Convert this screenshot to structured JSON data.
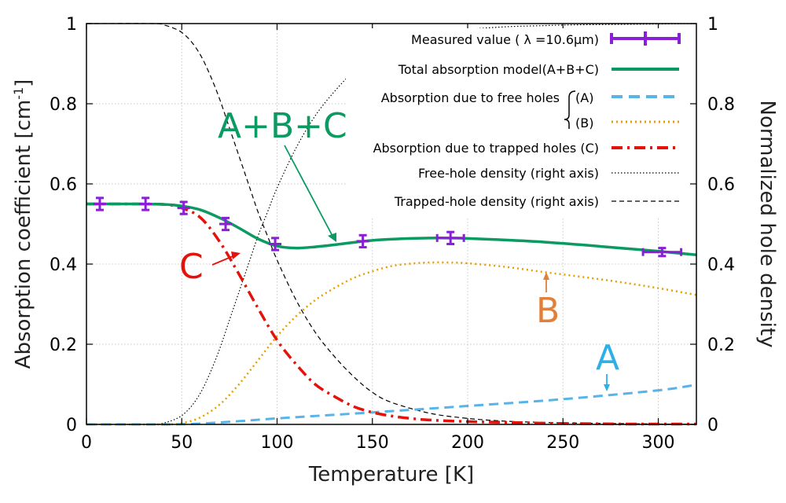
{
  "chart_data": {
    "type": "line",
    "xlabel": "Temperature [K]",
    "ylabel_left": "Absorption coefficient  [cm",
    "ylabel_left_exp": "-1",
    "ylabel_left_close": "]",
    "ylabel_right": "Normalized hole density",
    "xlim": [
      0,
      320
    ],
    "ylim_left": [
      0,
      1
    ],
    "ylim_right": [
      0,
      1
    ],
    "x_ticks": [
      "0",
      "50",
      "100",
      "150",
      "200",
      "250",
      "300"
    ],
    "y_ticks_left": [
      "0",
      "0.2",
      "0.4",
      "0.6",
      "0.8",
      "1"
    ],
    "y_ticks_right": [
      "0",
      "0.2",
      "0.4",
      "0.6",
      "0.8",
      "1"
    ],
    "grid": true,
    "colors": {
      "measured": "#8a1fd6",
      "total": "#0a9a62",
      "free": "#56b4e9",
      "B": "#e69f00",
      "trapped": "#e3120b",
      "density": "#000000"
    },
    "legend": {
      "measured": "Measured value ( λ =10.6μm)",
      "total": "Total absorption model(A+B+C)",
      "free": "Absorption due to free holes",
      "free_A": "(A)",
      "free_B": "(B)",
      "trapped": "Absorption due to trapped holes (C)",
      "free_density": "Free-hole density (right axis)",
      "trapped_density": "Trapped-hole density (right axis)"
    },
    "annotations": {
      "ABC": "A+B+C",
      "C": "C",
      "B": "B",
      "A": "A"
    },
    "series": [
      {
        "name": "Measured value ( λ =10.6μm)",
        "type": "errorbar",
        "x": [
          7,
          31,
          51,
          73,
          99,
          145,
          191,
          302
        ],
        "y": [
          0.55,
          0.55,
          0.54,
          0.5,
          0.45,
          0.457,
          0.465,
          0.43
        ],
        "yerr": [
          0.015,
          0.015,
          0.015,
          0.015,
          0.015,
          0.015,
          0.015,
          0.01
        ],
        "xerr": [
          0,
          0,
          0,
          0,
          0,
          0,
          7,
          10
        ]
      },
      {
        "name": "Total absorption model(A+B+C)",
        "x": [
          0,
          20,
          40,
          50,
          60,
          70,
          80,
          90,
          100,
          110,
          120,
          130,
          140,
          150,
          160,
          170,
          180,
          190,
          200,
          220,
          240,
          260,
          280,
          300,
          320
        ],
        "y": [
          0.55,
          0.55,
          0.549,
          0.545,
          0.535,
          0.515,
          0.49,
          0.463,
          0.445,
          0.44,
          0.443,
          0.448,
          0.454,
          0.459,
          0.462,
          0.464,
          0.465,
          0.465,
          0.464,
          0.46,
          0.455,
          0.448,
          0.44,
          0.432,
          0.423
        ]
      },
      {
        "name": "(A)",
        "x": [
          0,
          40,
          50,
          60,
          80,
          100,
          150,
          200,
          250,
          300,
          320
        ],
        "y": [
          0,
          0,
          0.0005,
          0.002,
          0.008,
          0.015,
          0.03,
          0.046,
          0.063,
          0.085,
          0.099
        ]
      },
      {
        "name": "(B)",
        "x": [
          0,
          40,
          50,
          60,
          70,
          80,
          90,
          100,
          110,
          120,
          130,
          140,
          150,
          160,
          170,
          180,
          190,
          200,
          220,
          240,
          260,
          280,
          300,
          320
        ],
        "y": [
          0,
          0,
          0.003,
          0.018,
          0.05,
          0.1,
          0.16,
          0.22,
          0.27,
          0.31,
          0.34,
          0.365,
          0.382,
          0.395,
          0.401,
          0.404,
          0.404,
          0.402,
          0.393,
          0.38,
          0.368,
          0.355,
          0.34,
          0.323
        ]
      },
      {
        "name": "Absorption due to trapped holes (C)",
        "x": [
          0,
          20,
          40,
          50,
          60,
          70,
          80,
          90,
          100,
          110,
          120,
          130,
          140,
          150,
          160,
          170,
          180,
          200,
          220,
          240,
          260,
          280,
          300,
          320
        ],
        "y": [
          0.55,
          0.55,
          0.549,
          0.54,
          0.515,
          0.455,
          0.375,
          0.29,
          0.21,
          0.15,
          0.1,
          0.07,
          0.045,
          0.03,
          0.021,
          0.015,
          0.011,
          0.007,
          0.005,
          0.003,
          0.002,
          0.001,
          0.001,
          0.001
        ]
      },
      {
        "name": "Free-hole density (right axis)",
        "x": [
          0,
          35,
          40,
          45,
          50,
          55,
          60,
          65,
          70,
          75,
          80,
          85,
          90,
          95,
          100,
          110,
          120,
          130,
          140,
          150,
          160,
          180,
          200,
          220,
          240,
          260,
          280,
          300,
          320
        ],
        "y": [
          0,
          0,
          0.003,
          0.01,
          0.022,
          0.045,
          0.08,
          0.13,
          0.19,
          0.26,
          0.33,
          0.4,
          0.47,
          0.53,
          0.59,
          0.69,
          0.77,
          0.83,
          0.88,
          0.92,
          0.945,
          0.972,
          0.985,
          0.992,
          0.995,
          0.997,
          0.998,
          0.999,
          1.0
        ]
      },
      {
        "name": "Trapped-hole density (right axis)",
        "x": [
          0,
          35,
          40,
          45,
          50,
          55,
          60,
          65,
          70,
          75,
          80,
          85,
          90,
          95,
          100,
          110,
          120,
          130,
          140,
          150,
          160,
          180,
          200,
          220,
          240,
          260,
          280,
          300,
          320
        ],
        "y": [
          1.0,
          1.0,
          0.997,
          0.99,
          0.978,
          0.955,
          0.92,
          0.87,
          0.81,
          0.74,
          0.67,
          0.6,
          0.53,
          0.47,
          0.41,
          0.31,
          0.23,
          0.17,
          0.12,
          0.08,
          0.055,
          0.028,
          0.015,
          0.008,
          0.005,
          0.003,
          0.002,
          0.001,
          0.0
        ]
      }
    ]
  }
}
